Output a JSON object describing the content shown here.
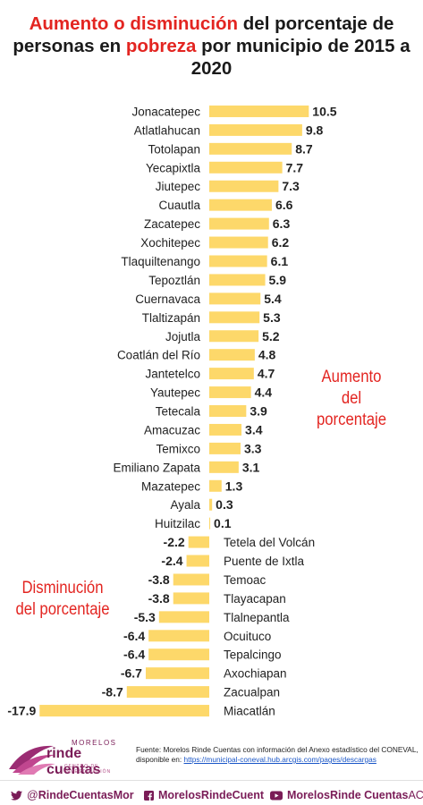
{
  "title": {
    "part1": "Aumento o disminución",
    "part2": " del porcentaje de personas en ",
    "part3": "pobreza",
    "part4": " por municipio de 2015 a 2020"
  },
  "annotations": {
    "increase": "Aumento del porcentaje",
    "decrease": "Disminución del porcentaje"
  },
  "chart_data": {
    "type": "bar",
    "orientation": "horizontal",
    "bar_color": "#fdd86a",
    "categories": [
      "Jonacatepec",
      "Atlatlahucan",
      "Totolapan",
      "Yecapixtla",
      "Jiutepec",
      "Cuautla",
      "Zacatepec",
      "Xochitepec",
      "Tlaquiltenango",
      "Tepoztlán",
      "Cuernavaca",
      "Tlaltizapán",
      "Jojutla",
      "Coatlán del Río",
      "Jantetelco",
      "Yautepec",
      "Tetecala",
      "Amacuzac",
      "Temixco",
      "Emiliano Zapata",
      "Mazatepec",
      "Ayala",
      "Huitzilac",
      "Tetela del Volcán",
      "Puente de Ixtla",
      "Temoac",
      "Tlayacapan",
      "Tlalnepantla",
      "Ocuituco",
      "Tepalcingo",
      "Axochiapan",
      "Zacualpan",
      "Miacatlán"
    ],
    "values": [
      10.5,
      9.8,
      8.7,
      7.7,
      7.3,
      6.6,
      6.3,
      6.2,
      6.1,
      5.9,
      5.4,
      5.3,
      5.2,
      4.8,
      4.7,
      4.4,
      3.9,
      3.4,
      3.3,
      3.1,
      1.3,
      0.3,
      0.1,
      -2.2,
      -2.4,
      -3.8,
      -3.8,
      -5.3,
      -6.4,
      -6.4,
      -6.7,
      -8.7,
      -17.9
    ],
    "value_labels": [
      "10.5",
      "9.8",
      "8.7",
      "7.7",
      "7.3",
      "6.6",
      "6.3",
      "6.2",
      "6.1",
      "5.9",
      "5.4",
      "5.3",
      "5.2",
      "4.8",
      "4.7",
      "4.4",
      "3.9",
      "3.4",
      "3.3",
      "3.1",
      "1.3",
      "0.3",
      "0.1",
      "-2.2",
      "-2.4",
      "-3.8",
      "-3.8",
      "-5.3",
      "-6.4",
      "-6.4",
      "-6.7",
      "-8.7",
      "-17.9"
    ],
    "xlim": [
      -17.9,
      10.5
    ]
  },
  "source": {
    "line1": "Fuente: Morelos Rinde Cuentas con información del Anexo estadístico del CONEVAL,",
    "line2_prefix": "disponible en: ",
    "link": "https://municipal-coneval.hub.arcgis.com/pages/descargas"
  },
  "logo": {
    "top": "MORELOS",
    "main": "rinde cuentas",
    "sub": "CENTRO DE INVESTIGACIÓN"
  },
  "social": {
    "twitter_at": "@",
    "twitter_bold": "RindeCuentas",
    "twitter_light": "Mor",
    "facebook": "MorelosRindeCuent",
    "youtube_bold": "Morelos ",
    "youtube_mid": "Rinde Cuentas",
    "youtube_light": " AC"
  },
  "colors": {
    "accent": "#e32521",
    "brand": "#7a1c57",
    "bar": "#fdd86a"
  }
}
